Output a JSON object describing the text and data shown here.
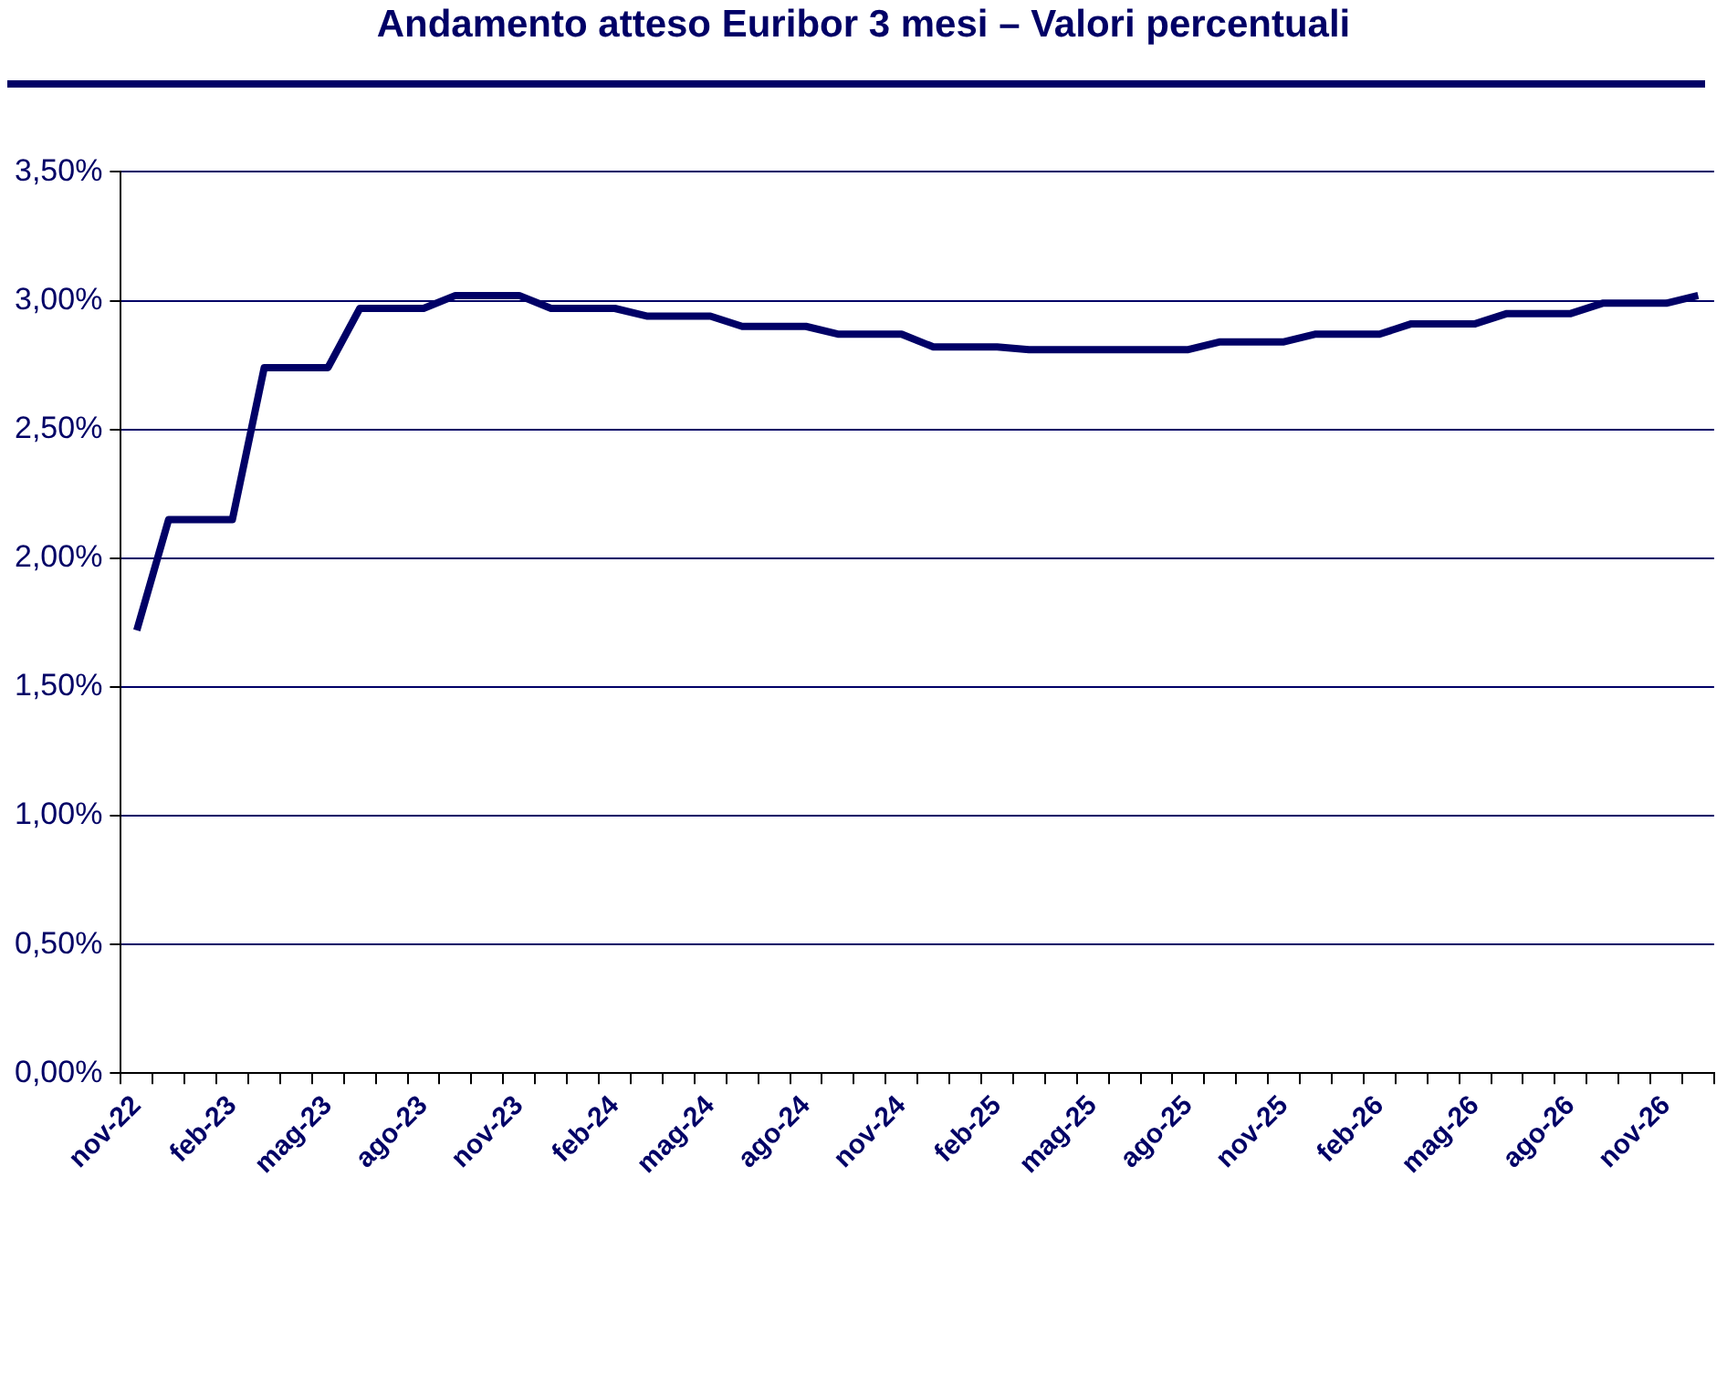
{
  "chart_data": {
    "type": "line",
    "title": "Andamento atteso Euribor 3 mesi – Valori percentuali",
    "categories": [
      "nov-22",
      null,
      null,
      "feb-23",
      null,
      null,
      "mag-23",
      null,
      null,
      "ago-23",
      null,
      null,
      "nov-23",
      null,
      null,
      "feb-24",
      null,
      null,
      "mag-24",
      null,
      null,
      "ago-24",
      null,
      null,
      "nov-24",
      null,
      null,
      "feb-25",
      null,
      null,
      "mag-25",
      null,
      null,
      "ago-25",
      null,
      null,
      "nov-25",
      null,
      null,
      "feb-26",
      null,
      null,
      "mag-26",
      null,
      null,
      "ago-26",
      null,
      null,
      "nov-26",
      null
    ],
    "series": [
      {
        "color": "#000066",
        "values": [
          1.72,
          2.15,
          2.15,
          2.15,
          2.74,
          2.74,
          2.74,
          2.97,
          2.97,
          2.97,
          3.02,
          3.02,
          3.02,
          2.97,
          2.97,
          2.97,
          2.94,
          2.94,
          2.94,
          2.9,
          2.9,
          2.9,
          2.87,
          2.87,
          2.87,
          2.82,
          2.82,
          2.82,
          2.81,
          2.81,
          2.81,
          2.81,
          2.81,
          2.81,
          2.84,
          2.84,
          2.84,
          2.87,
          2.87,
          2.87,
          2.91,
          2.91,
          2.91,
          2.95,
          2.95,
          2.95,
          2.99,
          2.99,
          2.99,
          3.02
        ]
      }
    ],
    "ylim": [
      0,
      3.5
    ],
    "yticks": [
      {
        "value": 0,
        "label": "0,00%"
      },
      {
        "value": 0.5,
        "label": "0,50%"
      },
      {
        "value": 1,
        "label": "1,00%"
      },
      {
        "value": 1.5,
        "label": "1,50%"
      },
      {
        "value": 2,
        "label": "2,00%"
      },
      {
        "value": 2.5,
        "label": "2,50%"
      },
      {
        "value": 3,
        "label": "3,00%"
      },
      {
        "value": 3.5,
        "label": "3,50%"
      }
    ],
    "grid": "y",
    "legend": false,
    "marker": "none",
    "line_style": "solid"
  }
}
